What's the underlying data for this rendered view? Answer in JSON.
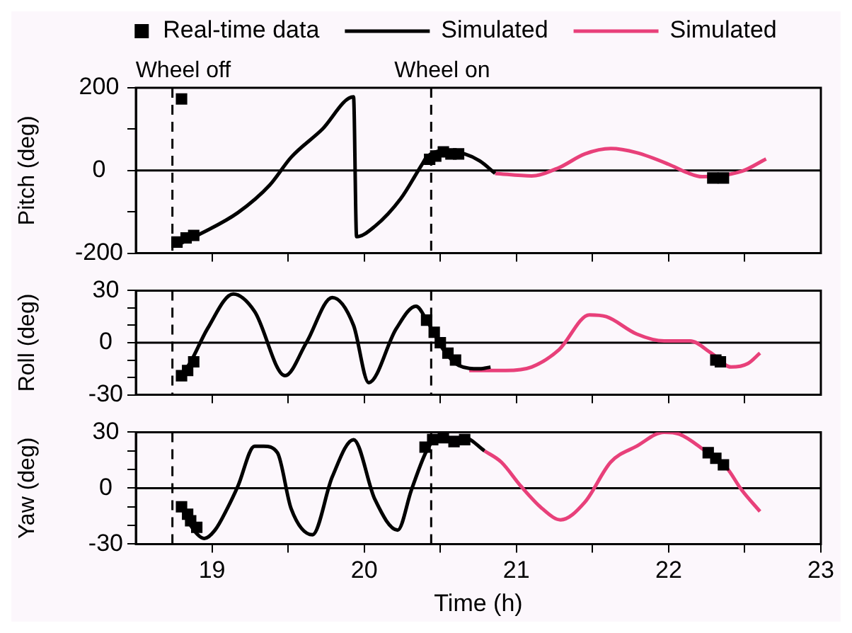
{
  "chart_data": [
    {
      "type": "line",
      "ylabel": "Pitch (deg)",
      "xlim": [
        18.5,
        23
      ],
      "xticks": [
        {
          "value": 19,
          "label": null
        },
        {
          "value": 19.5,
          "label": null
        },
        {
          "value": 20,
          "label": null
        },
        {
          "value": 20.5,
          "label": null
        },
        {
          "value": 21,
          "label": null
        },
        {
          "value": 21.5,
          "label": null
        },
        {
          "value": 22,
          "label": null
        },
        {
          "value": 22.5,
          "label": null
        }
      ],
      "ylim": [
        -200,
        200
      ],
      "yticks": [
        -200,
        {
          "value": -100,
          "label": null
        },
        0,
        {
          "value": 100,
          "label": null
        },
        200
      ],
      "tick_labels": "y",
      "legend": "top",
      "grid": false,
      "ref_lines": [
        {
          "axis": "y",
          "value": 0,
          "color": "#000000"
        },
        {
          "axis": "x",
          "value": 18.74,
          "label": "Wheel off",
          "line_style": "dashed",
          "color": "#000000"
        },
        {
          "axis": "x",
          "value": 20.44,
          "label": "Wheel on",
          "line_style": "dashed",
          "color": "#000000"
        }
      ],
      "series": [
        {
          "name": "Real-time data",
          "type": "scatter",
          "marker": "square",
          "color": "#000000",
          "x": [
            18.8,
            18.77,
            18.83,
            18.88,
            20.43,
            20.47,
            20.52,
            20.57,
            20.62,
            22.29,
            22.36
          ],
          "values": [
            173,
            -173,
            -163,
            -157,
            27,
            35,
            45,
            40,
            40,
            -18,
            -18
          ]
        },
        {
          "name": "Simulated",
          "line_style": "solid",
          "color": "#000000",
          "x": [
            18.79,
            18.93,
            19.17,
            19.38,
            19.52,
            19.72,
            19.93,
            19.95,
            20.07,
            20.24,
            20.38,
            20.41,
            20.52,
            20.66,
            20.76,
            20.86
          ],
          "values": [
            -177,
            -152,
            -102,
            -35,
            32,
            98,
            178,
            -160,
            -135,
            -68,
            15,
            32,
            48,
            40,
            23,
            -7
          ]
        },
        {
          "name": "Simulated",
          "line_style": "solid",
          "color": "#e8407a",
          "x": [
            20.86,
            21.1,
            21.28,
            21.45,
            21.62,
            21.79,
            22.0,
            22.12,
            22.22,
            22.48,
            22.64
          ],
          "values": [
            -7,
            -13,
            7,
            40,
            53,
            43,
            15,
            -5,
            -15,
            -2,
            28
          ]
        }
      ]
    },
    {
      "type": "line",
      "ylabel": "Roll (deg)",
      "xlim": [
        18.5,
        23
      ],
      "xticks": [
        {
          "value": 19,
          "label": null
        },
        {
          "value": 19.5,
          "label": null
        },
        {
          "value": 20,
          "label": null
        },
        {
          "value": 20.5,
          "label": null
        },
        {
          "value": 21,
          "label": null
        },
        {
          "value": 21.5,
          "label": null
        },
        {
          "value": 22,
          "label": null
        },
        {
          "value": 22.5,
          "label": null
        }
      ],
      "ylim": [
        -30,
        30
      ],
      "yticks": [
        -30,
        {
          "value": -20,
          "label": null
        },
        {
          "value": -10,
          "label": null
        },
        0,
        {
          "value": 10,
          "label": null
        },
        {
          "value": 20,
          "label": null
        },
        30
      ],
      "tick_labels": "y",
      "grid": false,
      "ref_lines": [
        {
          "axis": "y",
          "value": 0,
          "color": "#000000"
        },
        {
          "axis": "x",
          "value": 18.74,
          "line_style": "dashed",
          "color": "#000000"
        },
        {
          "axis": "x",
          "value": 20.44,
          "line_style": "dashed",
          "color": "#000000"
        }
      ],
      "series": [
        {
          "type": "scatter",
          "marker": "square",
          "color": "#000000",
          "x": [
            18.8,
            18.84,
            18.88,
            20.41,
            20.46,
            20.5,
            20.55,
            20.6,
            22.31,
            22.34
          ],
          "values": [
            -19,
            -16,
            -11,
            13,
            6,
            0,
            -6,
            -10,
            -10,
            -11
          ]
        },
        {
          "line_style": "solid",
          "color": "#000000",
          "x": [
            18.79,
            18.86,
            18.97,
            19.14,
            19.28,
            19.48,
            19.62,
            19.79,
            19.93,
            20.03,
            20.21,
            20.34,
            20.41,
            20.52,
            20.62,
            20.76,
            20.83
          ],
          "values": [
            -20,
            -11,
            8,
            28,
            18,
            -19,
            0,
            26,
            10,
            -23,
            8,
            21,
            13,
            -4,
            -13,
            -15,
            -14
          ]
        },
        {
          "line_style": "solid",
          "color": "#e8407a",
          "x": [
            20.69,
            20.93,
            21.1,
            21.28,
            21.48,
            21.59,
            21.79,
            21.97,
            22.14,
            22.28,
            22.41,
            22.52,
            22.6
          ],
          "values": [
            -16,
            -16,
            -14,
            -4,
            16,
            15,
            5,
            1,
            1,
            -6,
            -14,
            -12,
            -6
          ]
        }
      ]
    },
    {
      "type": "line",
      "ylabel": "Yaw (deg)",
      "xlabel": "Time (h)",
      "xlim": [
        18.5,
        23
      ],
      "xticks": [
        19,
        {
          "value": 19.5,
          "label": null
        },
        20,
        {
          "value": 20.5,
          "label": null
        },
        21,
        {
          "value": 21.5,
          "label": null
        },
        22,
        {
          "value": 22.5,
          "label": null
        },
        23
      ],
      "ylim": [
        -30,
        30
      ],
      "yticks": [
        -30,
        {
          "value": -20,
          "label": null
        },
        {
          "value": -10,
          "label": null
        },
        0,
        {
          "value": 10,
          "label": null
        },
        {
          "value": 20,
          "label": null
        },
        30
      ],
      "grid": false,
      "ref_lines": [
        {
          "axis": "y",
          "value": 0,
          "color": "#000000"
        },
        {
          "axis": "x",
          "value": 18.74,
          "line_style": "dashed",
          "color": "#000000"
        },
        {
          "axis": "x",
          "value": 20.44,
          "line_style": "dashed",
          "color": "#000000"
        }
      ],
      "series": [
        {
          "type": "scatter",
          "marker": "square",
          "color": "#000000",
          "x": [
            18.8,
            18.84,
            18.86,
            18.9,
            20.4,
            20.45,
            20.52,
            20.59,
            20.66,
            22.26,
            22.31,
            22.36
          ],
          "values": [
            -10,
            -14,
            -17.5,
            -21,
            22,
            26,
            27,
            25,
            26,
            19,
            16,
            12.5
          ]
        },
        {
          "line_style": "solid",
          "color": "#000000",
          "x": [
            18.8,
            18.86,
            18.95,
            19.02,
            19.1,
            19.17,
            19.28,
            19.34,
            19.43,
            19.52,
            19.66,
            19.79,
            19.93,
            20.07,
            20.22,
            20.31,
            20.41,
            20.48,
            20.66,
            20.79
          ],
          "values": [
            -10,
            -20,
            -27,
            -22.5,
            -11,
            1,
            22.5,
            22.5,
            19,
            -11,
            -25,
            6,
            26,
            -6,
            -22.5,
            -1,
            20,
            27,
            27,
            20
          ]
        },
        {
          "line_style": "solid",
          "color": "#e8407a",
          "x": [
            20.79,
            20.9,
            21.03,
            21.17,
            21.29,
            21.45,
            21.62,
            21.79,
            21.97,
            22.07,
            22.24,
            22.38,
            22.48,
            22.6
          ],
          "values": [
            20,
            14,
            1,
            -11,
            -17,
            -7.5,
            14,
            22.5,
            30,
            29,
            20,
            11,
            -1,
            -12.5
          ]
        }
      ]
    }
  ]
}
